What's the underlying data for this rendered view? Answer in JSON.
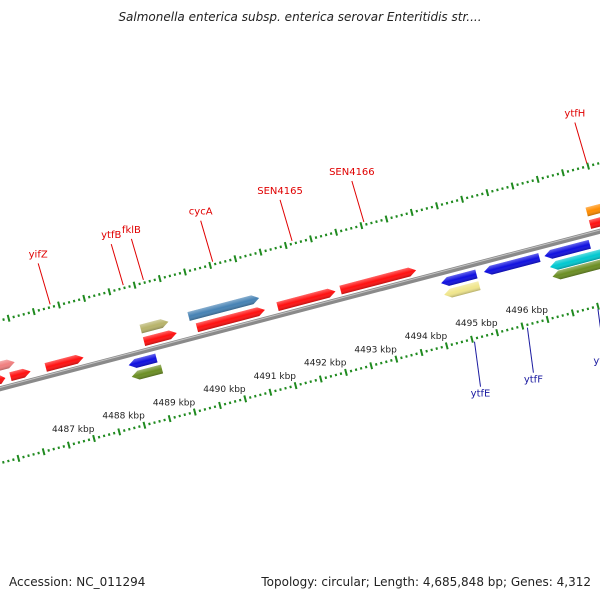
{
  "title": "Salmonella enterica subsp. enterica serovar Enteritidis str....",
  "footer": {
    "accession": "Accession: NC_011294",
    "summary": "Topology: circular; Length: 4,685,848 bp; Genes: 4,312"
  },
  "colors": {
    "backbone": "#8a8a8a",
    "tick": "#1f8a1f",
    "top_label": "#e00000",
    "bottom_label": "#1a1aa0"
  },
  "kbp_labels": [
    {
      "text": "4487 kbp",
      "pos": 4487.0
    },
    {
      "text": "4488 kbp",
      "pos": 4488.0
    },
    {
      "text": "4489 kbp",
      "pos": 4489.0
    },
    {
      "text": "4490 kbp",
      "pos": 4490.0
    },
    {
      "text": "4491 kbp",
      "pos": 4491.0
    },
    {
      "text": "4492 kbp",
      "pos": 4492.0
    },
    {
      "text": "4493 kbp",
      "pos": 4493.0
    },
    {
      "text": "4494 kbp",
      "pos": 4494.0
    },
    {
      "text": "4495 kbp",
      "pos": 4495.0
    },
    {
      "text": "4496 kbp",
      "pos": 4496.0
    }
  ],
  "genes": [
    {
      "name": "",
      "start": 4486.05,
      "end": 4486.4,
      "strand": "+",
      "lane": "a1",
      "color": "#f07f7f"
    },
    {
      "name": "",
      "start": 4485.9,
      "end": 4486.15,
      "strand": "+",
      "lane": "a2",
      "color": "#ff1010"
    },
    {
      "name": "",
      "start": 4486.25,
      "end": 4486.65,
      "strand": "+",
      "lane": "a2",
      "color": "#ff1010"
    },
    {
      "name": "yifZ",
      "start": 4486.95,
      "end": 4487.7,
      "strand": "+",
      "lane": "a2",
      "color": "#ff1010",
      "label_side": "top"
    },
    {
      "name": "fklB",
      "start": 4488.9,
      "end": 4489.45,
      "strand": "+",
      "lane": "a1",
      "color": "#b7b36a",
      "label_side": "top"
    },
    {
      "name": "",
      "start": 4488.9,
      "end": 4489.55,
      "strand": "+",
      "lane": "a2",
      "color": "#ff1010"
    },
    {
      "name": "cycA",
      "start": 4489.85,
      "end": 4491.25,
      "strand": "+",
      "lane": "a1",
      "color": "#4682b4",
      "label_side": "top"
    },
    {
      "name": "",
      "start": 4489.95,
      "end": 4491.3,
      "strand": "+",
      "lane": "a2",
      "color": "#ff1010"
    },
    {
      "name": "SEN4165",
      "start": 4491.55,
      "end": 4492.7,
      "strand": "+",
      "lane": "a2",
      "color": "#ff1010",
      "label_side": "top"
    },
    {
      "name": "SEN4166",
      "start": 4492.8,
      "end": 4494.3,
      "strand": "+",
      "lane": "a2",
      "color": "#ff1010",
      "label_side": "top"
    },
    {
      "name": "ytfH",
      "start": 4497.75,
      "end": 4498.2,
      "strand": "+",
      "lane": "a1",
      "color": "#ff8c00",
      "label_side": "top"
    },
    {
      "name": "",
      "start": 4497.75,
      "end": 4498.2,
      "strand": "+",
      "lane": "a2",
      "color": "#ff1010"
    },
    {
      "name": "ytfB",
      "start": 4488.5,
      "end": 4489.05,
      "strand": "-",
      "lane": "b1",
      "color": "#1010e0"
    },
    {
      "name": "",
      "start": 4488.5,
      "end": 4489.1,
      "strand": "-",
      "lane": "b2",
      "color": "#6b8e23",
      "label_side": "bottom"
    },
    {
      "name": "",
      "start": 4494.7,
      "end": 4495.4,
      "strand": "-",
      "lane": "b1",
      "color": "#1010e0"
    },
    {
      "name": "ytfE",
      "start": 4494.7,
      "end": 4495.4,
      "strand": "-",
      "lane": "b2",
      "color": "#f0e68c",
      "label_side": "bottom"
    },
    {
      "name": "ytfF",
      "start": 4495.55,
      "end": 4496.65,
      "strand": "-",
      "lane": "b1",
      "color": "#1010e0",
      "label_side": "bottom"
    },
    {
      "name": "",
      "start": 4496.75,
      "end": 4497.65,
      "strand": "-",
      "lane": "b1",
      "color": "#1010e0"
    },
    {
      "name": "",
      "start": 4496.8,
      "end": 4498.2,
      "strand": "-",
      "lane": "b2",
      "color": "#00c8d0"
    },
    {
      "name": "ytfG",
      "start": 4496.8,
      "end": 4498.2,
      "strand": "-",
      "lane": "b3",
      "color": "#6b8e23",
      "label_side": "bottom"
    }
  ]
}
